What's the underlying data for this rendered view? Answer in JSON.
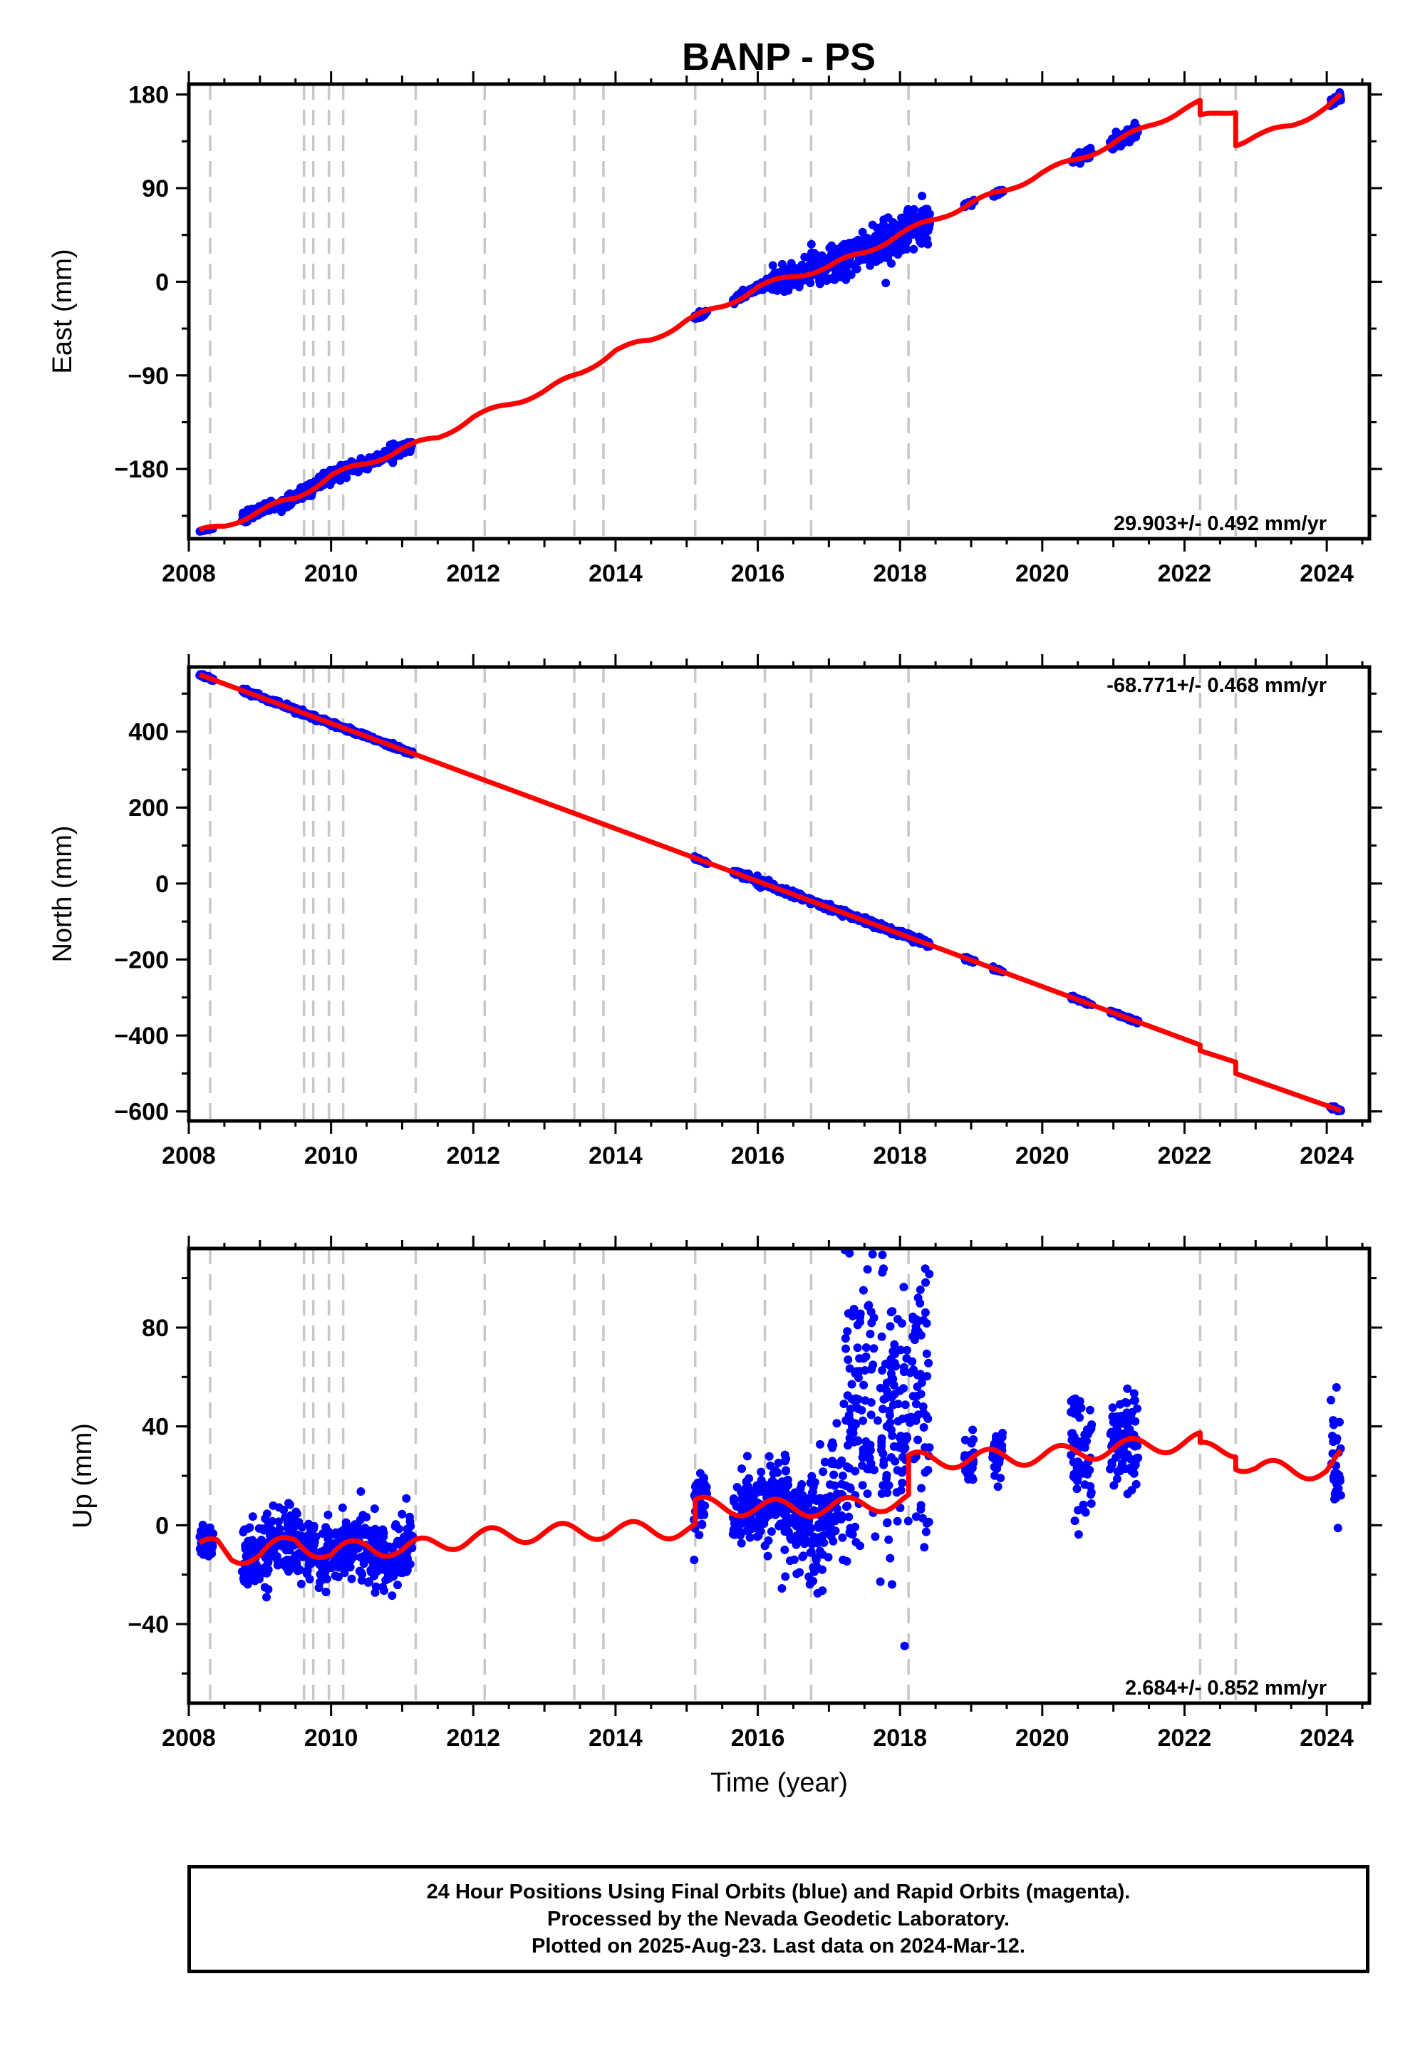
{
  "title": "BANP - PS",
  "colors": {
    "final_orbits": "#0000ff",
    "model": "#ff0000",
    "event_lines": "#c8c8c8"
  },
  "chart_data": [
    {
      "type": "scatter",
      "component": "east",
      "ylabel": "East (mm)",
      "xlabel": "",
      "xlim": [
        2008.0,
        2024.6
      ],
      "ylim": [
        -247,
        190
      ],
      "yticks": [
        180,
        90,
        0,
        -90,
        -180
      ],
      "xticks": [
        2008,
        2010,
        2012,
        2014,
        2016,
        2018,
        2020,
        2022,
        2024
      ],
      "rate_label": "29.903+/- 0.492 mm/yr",
      "rate_label_position": "bottom-right",
      "event_lines": [
        2008.3,
        2009.62,
        2009.75,
        2009.97,
        2010.17,
        2011.19,
        2012.16,
        2013.42,
        2013.83,
        2015.12,
        2016.1,
        2016.75,
        2018.12,
        2022.22,
        2022.72
      ],
      "model": [
        [
          2008.15,
          -240
        ],
        [
          2008.5,
          -235
        ],
        [
          2009.0,
          -220
        ],
        [
          2009.5,
          -208
        ],
        [
          2010.0,
          -186
        ],
        [
          2010.5,
          -175
        ],
        [
          2011.0,
          -160
        ],
        [
          2011.5,
          -150
        ],
        [
          2012.0,
          -130
        ],
        [
          2012.5,
          -118
        ],
        [
          2013.0,
          -105
        ],
        [
          2013.5,
          -88
        ],
        [
          2014.0,
          -66
        ],
        [
          2014.5,
          -56
        ],
        [
          2015.0,
          -37
        ],
        [
          2015.5,
          -24
        ],
        [
          2016.0,
          -5
        ],
        [
          2016.5,
          5
        ],
        [
          2017.0,
          15
        ],
        [
          2017.5,
          28
        ],
        [
          2018.0,
          46
        ],
        [
          2018.5,
          60
        ],
        [
          2019.0,
          76
        ],
        [
          2019.5,
          88
        ],
        [
          2020.0,
          105
        ],
        [
          2020.5,
          118
        ],
        [
          2021.0,
          133
        ],
        [
          2021.5,
          150
        ],
        [
          2022.0,
          166
        ],
        [
          2022.22,
          172
        ],
        [
          2022.22,
          158
        ],
        [
          2022.72,
          165
        ],
        [
          2022.72,
          133
        ],
        [
          2023.0,
          140
        ],
        [
          2023.5,
          150
        ],
        [
          2024.0,
          168
        ],
        [
          2024.2,
          178
        ]
      ],
      "data_segments": [
        [
          2008.15,
          2008.35,
          0
        ],
        [
          2008.75,
          2011.15,
          3
        ],
        [
          2015.1,
          2015.3,
          1.5
        ],
        [
          2015.65,
          2016.15,
          2
        ],
        [
          2016.15,
          2016.7,
          6
        ],
        [
          2016.7,
          2018.42,
          9
        ],
        [
          2018.9,
          2019.05,
          1
        ],
        [
          2019.3,
          2019.45,
          1
        ],
        [
          2020.4,
          2020.7,
          2
        ],
        [
          2020.95,
          2021.35,
          3
        ],
        [
          2024.05,
          2024.2,
          2
        ]
      ]
    },
    {
      "type": "scatter",
      "component": "north",
      "ylabel": "North (mm)",
      "xlabel": "",
      "xlim": [
        2008.0,
        2024.6
      ],
      "ylim": [
        -625,
        570
      ],
      "yticks": [
        400,
        200,
        0,
        -200,
        -400,
        -600
      ],
      "xticks": [
        2008,
        2010,
        2012,
        2014,
        2016,
        2018,
        2020,
        2022,
        2024
      ],
      "rate_label": "-68.771+/- 0.468 mm/yr",
      "rate_label_position": "top-right",
      "event_lines": [
        2008.3,
        2009.62,
        2009.75,
        2009.97,
        2010.17,
        2011.19,
        2012.16,
        2013.42,
        2013.83,
        2015.12,
        2016.1,
        2016.75,
        2018.12,
        2022.22,
        2022.72
      ],
      "model": [
        [
          2008.15,
          550
        ],
        [
          2022.22,
          -425
        ],
        [
          2022.22,
          -440
        ],
        [
          2022.72,
          -470
        ],
        [
          2022.72,
          -500
        ],
        [
          2024.2,
          -598
        ]
      ],
      "data_segments": [
        [
          2008.15,
          2008.35,
          2
        ],
        [
          2008.75,
          2011.15,
          3
        ],
        [
          2015.1,
          2015.3,
          2
        ],
        [
          2015.65,
          2018.42,
          4
        ],
        [
          2018.9,
          2019.05,
          2
        ],
        [
          2019.3,
          2019.45,
          2
        ],
        [
          2020.4,
          2020.7,
          2
        ],
        [
          2020.95,
          2021.35,
          2
        ],
        [
          2024.05,
          2024.2,
          2
        ]
      ]
    },
    {
      "type": "scatter",
      "component": "up",
      "ylabel": "Up (mm)",
      "xlabel": "Time (year)",
      "xlim": [
        2008.0,
        2024.6
      ],
      "ylim": [
        -72,
        112
      ],
      "yticks": [
        80,
        40,
        0,
        -40
      ],
      "xticks": [
        2008,
        2010,
        2012,
        2014,
        2016,
        2018,
        2020,
        2022,
        2024
      ],
      "rate_label": "2.684+/- 0.852 mm/yr",
      "rate_label_position": "bottom-right",
      "event_lines": [
        2008.3,
        2009.62,
        2009.75,
        2009.97,
        2010.17,
        2011.19,
        2012.16,
        2013.42,
        2013.83,
        2015.12,
        2016.1,
        2016.75,
        2018.12,
        2022.22,
        2022.72
      ],
      "model": [
        [
          2008.15,
          -10
        ],
        [
          2008.4,
          -8
        ],
        [
          2008.6,
          -12
        ],
        [
          2009.0,
          -12
        ],
        [
          2009.5,
          -6
        ],
        [
          2010.0,
          -12
        ],
        [
          2010.5,
          -8
        ],
        [
          2011.0,
          -10
        ],
        [
          2012.0,
          -5
        ],
        [
          2013.0,
          -3
        ],
        [
          2014.0,
          -2
        ],
        [
          2015.0,
          -2
        ],
        [
          2015.12,
          -2
        ],
        [
          2015.12,
          8
        ],
        [
          2016.0,
          7
        ],
        [
          2017.0,
          7
        ],
        [
          2018.12,
          10
        ],
        [
          2018.12,
          26
        ],
        [
          2019.0,
          27
        ],
        [
          2020.0,
          28
        ],
        [
          2021.0,
          31
        ],
        [
          2022.22,
          34
        ],
        [
          2022.22,
          30
        ],
        [
          2022.72,
          31
        ],
        [
          2022.72,
          26
        ],
        [
          2023.0,
          23
        ],
        [
          2024.0,
          22
        ],
        [
          2024.2,
          27
        ]
      ],
      "data_segments": [
        [
          2008.15,
          2008.35,
          3
        ],
        [
          2008.75,
          2011.15,
          7
        ],
        [
          2015.1,
          2015.3,
          6
        ],
        [
          2015.65,
          2016.15,
          7
        ],
        [
          2016.15,
          2016.7,
          9
        ],
        [
          2016.7,
          2017.0,
          12
        ],
        [
          2017.0,
          2017.2,
          12
        ],
        [
          2017.2,
          2018.42,
          28
        ],
        [
          2018.9,
          2019.05,
          5
        ],
        [
          2019.3,
          2019.45,
          5
        ],
        [
          2020.4,
          2020.7,
          12
        ],
        [
          2020.95,
          2021.35,
          10
        ],
        [
          2024.05,
          2024.2,
          14
        ]
      ]
    }
  ],
  "footer": {
    "line1": "24 Hour Positions Using Final Orbits (blue) and Rapid Orbits (magenta).",
    "line2": "Processed by the Nevada Geodetic Laboratory.",
    "line3": "Plotted on 2025-Aug-23. Last data on 2024-Mar-12."
  }
}
